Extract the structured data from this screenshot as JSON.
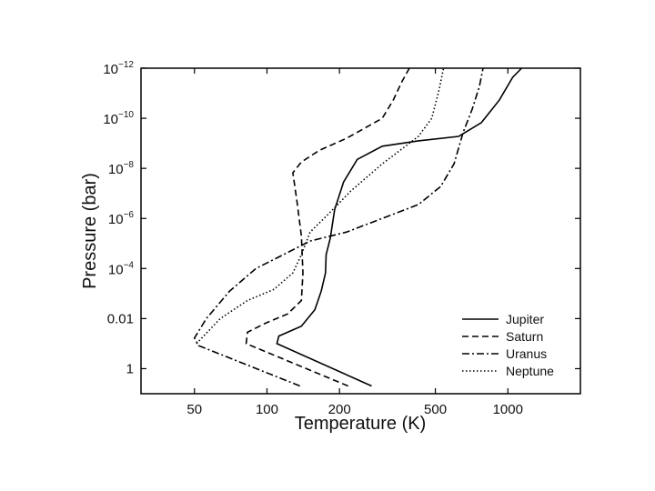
{
  "chart_data": {
    "type": "line",
    "xlabel": "Temperature (K)",
    "ylabel": "Pressure (bar)",
    "xscale": "log",
    "yscale": "log",
    "yinvert": true,
    "xlim": [
      30,
      2000
    ],
    "ylim": [
      1e-12,
      10
    ],
    "xticks": [
      50,
      100,
      200,
      500,
      1000
    ],
    "yticks": [
      {
        "value": 1e-12,
        "label": "10",
        "exponent": "−12"
      },
      {
        "value": 1e-10,
        "label": "10",
        "exponent": "−10"
      },
      {
        "value": 1e-08,
        "label": "10",
        "exponent": "−8"
      },
      {
        "value": 1e-06,
        "label": "10",
        "exponent": "−6"
      },
      {
        "value": 0.0001,
        "label": "10",
        "exponent": "−4"
      },
      0.01,
      1
    ],
    "legend": "lower right",
    "series": [
      {
        "name": "Jupiter",
        "color": "#000000",
        "linestyle": "solid",
        "x": [
          272,
          110,
          112,
          139,
          158,
          168,
          175,
          176,
          183,
          191,
          208,
          237,
          301,
          425,
          625,
          776,
          921,
          1047,
          1140
        ],
        "values": [
          4.9,
          0.1,
          0.05,
          0.02,
          0.0044,
          0.0008,
          0.00015,
          2.8e-05,
          6.3e-06,
          4.4e-07,
          3.5e-08,
          4.4e-09,
          1.3e-09,
          8e-10,
          5.3e-10,
          1.5e-10,
          1.9e-11,
          2.3e-12,
          1e-12
        ]
      },
      {
        "name": "Saturn",
        "color": "#000000",
        "linestyle": "dashed",
        "x": [
          217,
          82,
          83,
          99,
          122,
          139,
          141,
          139,
          133,
          128,
          139,
          165,
          214,
          301,
          334,
          363,
          390
        ],
        "values": [
          4.9,
          0.1,
          0.035,
          0.015,
          0.0065,
          0.0019,
          0.00015,
          5e-06,
          1.9e-07,
          1.5e-08,
          5.6e-09,
          1.9e-09,
          6.3e-10,
          1e-10,
          1.9e-11,
          3.5e-12,
          1e-12
        ]
      },
      {
        "name": "Uranus",
        "color": "#000000",
        "linestyle": "dashdot",
        "x": [
          137,
          52,
          50,
          56,
          70,
          90,
          117,
          151,
          214,
          301,
          425,
          526,
          598,
          653,
          711,
          762,
          789
        ],
        "values": [
          4.9,
          0.12,
          0.06,
          0.01,
          0.0008,
          0.0001,
          2.8e-05,
          8e-06,
          3.5e-06,
          1e-06,
          2.8e-07,
          5.3e-08,
          6.6e-09,
          3.5e-10,
          4.3e-11,
          5.3e-12,
          1e-12
        ]
      },
      {
        "name": "Neptune",
        "color": "#000000",
        "linestyle": "dotted",
        "x": [
          51,
          64,
          83,
          107,
          128,
          139,
          151,
          180,
          223,
          301,
          425,
          483,
          517,
          541
        ],
        "values": [
          0.1,
          0.01,
          0.0019,
          0.00068,
          0.00015,
          2.8e-05,
          3.5e-06,
          6.6e-07,
          8e-08,
          6.6e-09,
          5.3e-10,
          1e-10,
          8e-12,
          1e-12
        ]
      }
    ]
  }
}
